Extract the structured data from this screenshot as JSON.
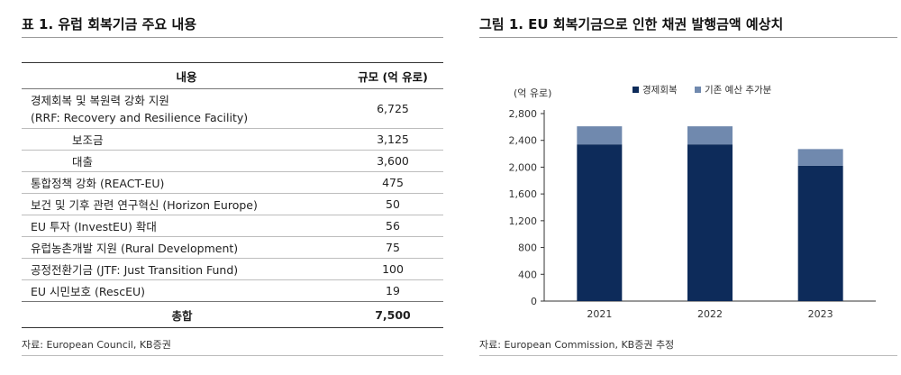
{
  "table": {
    "title": "표 1. 유럽 회복기금 주요 내용",
    "header": {
      "col1": "내용",
      "col2": "규모 (억 유로)"
    },
    "rows": [
      {
        "label": "경제회복 및 복원력 강화 지원",
        "label2": "(RRF: Recovery and Resilience Facility)",
        "value": "6,725"
      },
      {
        "label": "보조금",
        "value": "3,125"
      },
      {
        "label": "대출",
        "value": "3,600"
      },
      {
        "label": "통합정책 강화 (REACT-EU)",
        "value": "475"
      },
      {
        "label": "보건 및 기후 관련 연구혁신 (Horizon Europe)",
        "value": "50"
      },
      {
        "label": "EU 투자 (InvestEU) 확대",
        "value": "56"
      },
      {
        "label": "유럽농촌개발 지원 (Rural Development)",
        "value": "75"
      },
      {
        "label": "공정전환기금 (JTF: Just Transition Fund)",
        "value": "100"
      },
      {
        "label": "EU 시민보호 (RescEU)",
        "value": "19"
      }
    ],
    "total": {
      "label": "총합",
      "value": "7,500"
    },
    "source": "자료: European Council, KB증권"
  },
  "figure": {
    "title": "그림 1. EU 회복기금으로 인한 채권 발행금액 예상치",
    "source": "자료: European Commission, KB증권 추정"
  },
  "chart_data": {
    "type": "bar",
    "stacked": true,
    "title": "그림 1. EU 회복기금으로 인한 채권 발행금액 예상치",
    "ylabel": "(억 유로)",
    "categories": [
      "2021",
      "2022",
      "2023"
    ],
    "series": [
      {
        "name": "경제회복",
        "color": "#0d2b5a",
        "values": [
          2340,
          2340,
          2020
        ]
      },
      {
        "name": "기존 예산 추가분",
        "color": "#7089ae",
        "values": [
          270,
          270,
          250
        ]
      }
    ],
    "ylim": [
      0,
      2800
    ],
    "yticks": [
      0,
      400,
      800,
      1200,
      1600,
      2000,
      2400,
      2800
    ],
    "ytick_labels": [
      "0",
      "400",
      "800",
      "1,200",
      "1,600",
      "2,000",
      "2,400",
      "2,800"
    ],
    "legend_position": "top",
    "grid": false
  }
}
